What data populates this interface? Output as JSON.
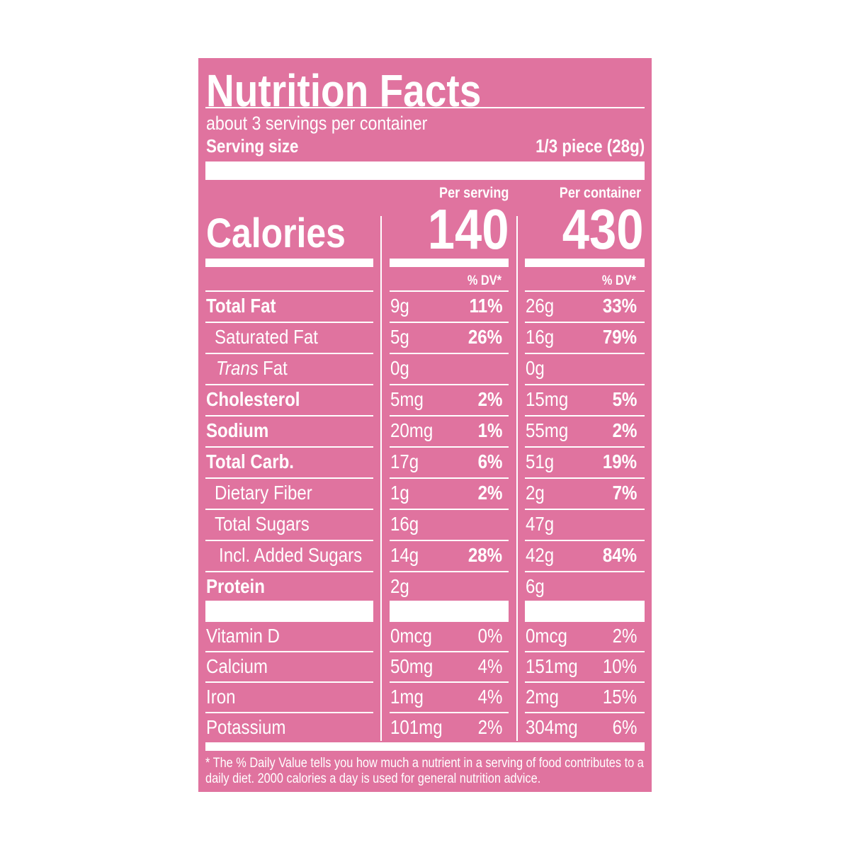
{
  "title": "Nutrition Facts",
  "servings": "about 3 servings per container",
  "serving_size": {
    "label": "Serving size",
    "value": "1/3 piece (28g)"
  },
  "columns": [
    "Per serving",
    "Per container"
  ],
  "calories": {
    "label": "Calories",
    "values": [
      140,
      430
    ]
  },
  "dv_header": [
    "% DV*",
    "% DV*"
  ],
  "nutrients": [
    {
      "name": "Total Fat",
      "bold": true,
      "indent": 0,
      "serving": [
        "9g",
        "11%"
      ],
      "container": [
        "26g",
        "33%"
      ]
    },
    {
      "name": "Saturated Fat",
      "bold": false,
      "indent": 1,
      "serving": [
        "5g",
        "26%"
      ],
      "container": [
        "16g",
        "79%"
      ]
    },
    {
      "name_italic": "Trans",
      "name": "Fat",
      "bold": false,
      "indent": 1,
      "serving": [
        "0g"
      ],
      "container": [
        "0g"
      ]
    },
    {
      "name": "Cholesterol",
      "bold": true,
      "indent": 0,
      "serving": [
        "5mg",
        "2%"
      ],
      "container": [
        "15mg",
        "5%"
      ]
    },
    {
      "name": "Sodium",
      "bold": true,
      "indent": 0,
      "serving": [
        "20mg",
        "1%"
      ],
      "container": [
        "55mg",
        "2%"
      ]
    },
    {
      "name": "Total Carb.",
      "bold": true,
      "indent": 0,
      "serving": [
        "17g",
        "6%"
      ],
      "container": [
        "51g",
        "19%"
      ]
    },
    {
      "name": "Dietary Fiber",
      "bold": false,
      "indent": 1,
      "serving": [
        "1g",
        "2%"
      ],
      "container": [
        "2g",
        "7%"
      ]
    },
    {
      "name": "Total Sugars",
      "bold": false,
      "indent": 1,
      "serving": [
        "16g"
      ],
      "container": [
        "47g"
      ]
    },
    {
      "name": "Incl. Added Sugars",
      "bold": false,
      "indent": 2,
      "serving": [
        "14g",
        "28%"
      ],
      "container": [
        "42g",
        "84%"
      ]
    },
    {
      "name": "Protein",
      "bold": true,
      "indent": 0,
      "serving": [
        "2g"
      ],
      "container": [
        "6g"
      ]
    }
  ],
  "vitamins": [
    {
      "name": "Vitamin D",
      "serving": [
        "0mcg",
        "0%"
      ],
      "container": [
        "0mcg",
        "2%"
      ]
    },
    {
      "name": "Calcium",
      "serving": [
        "50mg",
        "4%"
      ],
      "container": [
        "151mg",
        "10%"
      ]
    },
    {
      "name": "Iron",
      "serving": [
        "1mg",
        "4%"
      ],
      "container": [
        "2mg",
        "15%"
      ]
    },
    {
      "name": "Potassium",
      "serving": [
        "101mg",
        "2%"
      ],
      "container": [
        "304mg",
        "6%"
      ]
    }
  ],
  "footnote": "* The % Daily Value tells you how much a nutrient in a serving of food contributes to a daily diet. 2000 calories a day is used for general nutrition advice."
}
